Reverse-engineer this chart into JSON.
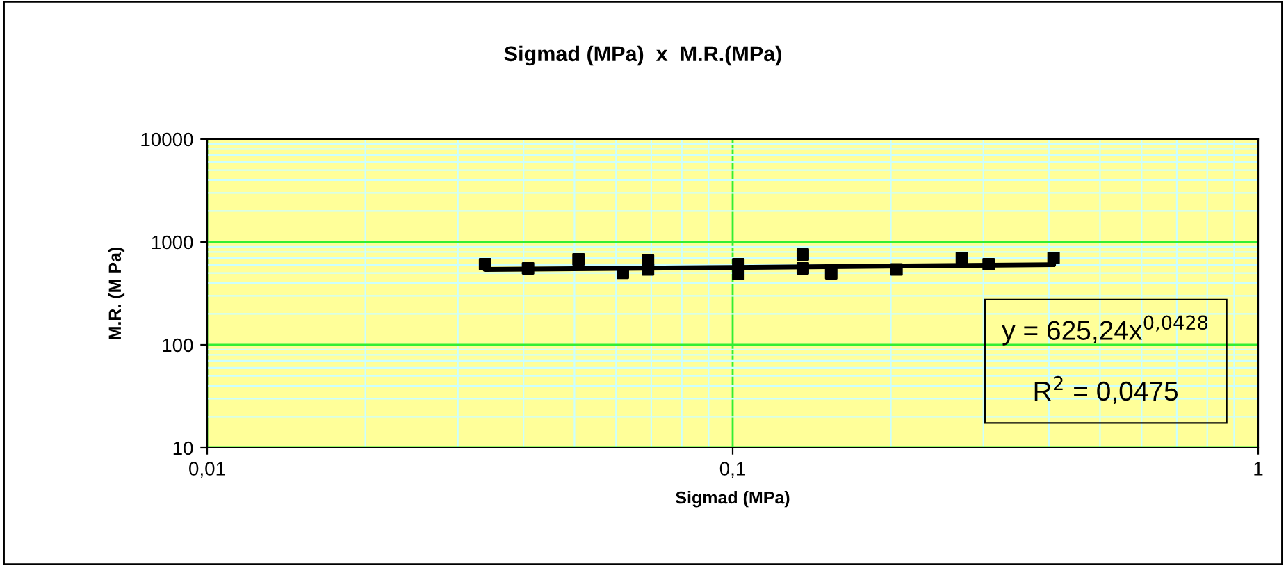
{
  "chart_data": {
    "type": "scatter",
    "title": "Sigmad (MPa)  x  M.R.(MPa)",
    "xlabel": "Sigmad (MPa)",
    "ylabel": "M.R. (M Pa)",
    "log": "xy",
    "grid": true,
    "marker": "square",
    "xlim": [
      0.01,
      1
    ],
    "xticks": [
      {
        "value": 0.01,
        "label": "0,01"
      },
      {
        "value": 0.02,
        "label": null
      },
      {
        "value": 0.03,
        "label": null
      },
      {
        "value": 0.04,
        "label": null
      },
      {
        "value": 0.05,
        "label": null
      },
      {
        "value": 0.06,
        "label": null
      },
      {
        "value": 0.07,
        "label": null
      },
      {
        "value": 0.08,
        "label": null
      },
      {
        "value": 0.09,
        "label": null
      },
      {
        "value": 0.1,
        "label": "0,1"
      },
      {
        "value": 0.2,
        "label": null
      },
      {
        "value": 0.3,
        "label": null
      },
      {
        "value": 0.4,
        "label": null
      },
      {
        "value": 0.5,
        "label": null
      },
      {
        "value": 0.6,
        "label": null
      },
      {
        "value": 0.7,
        "label": null
      },
      {
        "value": 0.8,
        "label": null
      },
      {
        "value": 0.9,
        "label": null
      },
      1
    ],
    "ylim": [
      10,
      10000
    ],
    "yticks": [
      10,
      {
        "value": 20,
        "label": null
      },
      {
        "value": 30,
        "label": null
      },
      {
        "value": 40,
        "label": null
      },
      {
        "value": 50,
        "label": null
      },
      {
        "value": 60,
        "label": null
      },
      {
        "value": 70,
        "label": null
      },
      {
        "value": 80,
        "label": null
      },
      {
        "value": 90,
        "label": null
      },
      100,
      {
        "value": 200,
        "label": null
      },
      {
        "value": 300,
        "label": null
      },
      {
        "value": 400,
        "label": null
      },
      {
        "value": 500,
        "label": null
      },
      {
        "value": 600,
        "label": null
      },
      {
        "value": 700,
        "label": null
      },
      {
        "value": 800,
        "label": null
      },
      {
        "value": 900,
        "label": null
      },
      1000,
      {
        "value": 2000,
        "label": null
      },
      {
        "value": 3000,
        "label": null
      },
      {
        "value": 4000,
        "label": null
      },
      {
        "value": 5000,
        "label": null
      },
      {
        "value": 6000,
        "label": null
      },
      {
        "value": 7000,
        "label": null
      },
      {
        "value": 8000,
        "label": null
      },
      {
        "value": 9000,
        "label": null
      },
      10000
    ],
    "annotations": [
      "y = 625,24x$^{0,0428}$",
      "R$^{2}$ = 0,0475"
    ],
    "series": [
      {
        "color": "#000000",
        "x": [
          0.0338,
          0.0408,
          0.0509,
          0.0618,
          0.069,
          0.069,
          0.1025,
          0.1025,
          0.136,
          0.136,
          0.154,
          0.205,
          0.273,
          0.307,
          0.408
        ],
        "values": [
          608,
          554,
          677,
          503,
          660,
          540,
          608,
          488,
          755,
          554,
          497,
          540,
          700,
          608,
          700
        ]
      },
      {
        "type": "line",
        "color": "#000000",
        "line_style": "solid",
        "marker": "none",
        "x": [
          0.0338,
          0.1,
          0.408
        ],
        "values": [
          541,
          565,
          602
        ]
      }
    ]
  }
}
